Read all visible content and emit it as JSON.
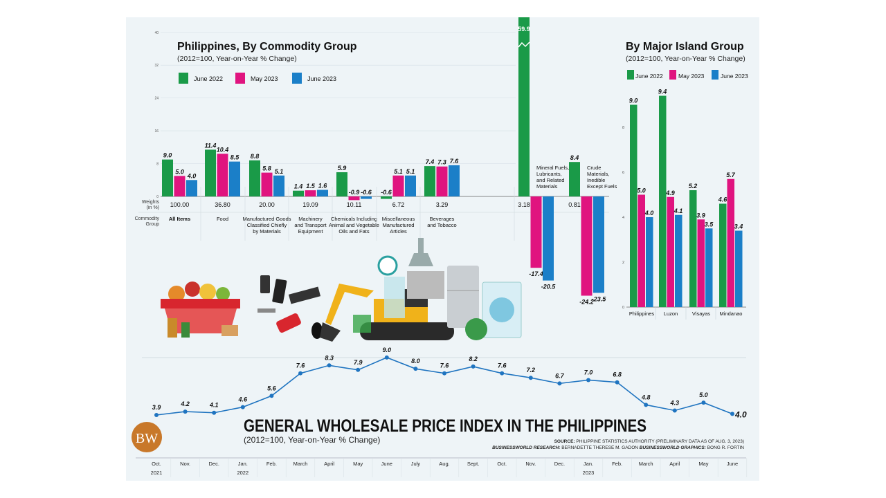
{
  "colors": {
    "june2022": "#1a9a48",
    "may2023": "#e0147f",
    "june2023": "#1b7fc8",
    "line": "#1f74c0",
    "panel": "#eef4f7",
    "logo": "#c8782a"
  },
  "infographic": {
    "title": "GENERAL WHOLESALE PRICE INDEX IN THE PHILIPPINES",
    "subtitle": "(2012=100, Year-on-Year % Change)",
    "logo_text": "BW",
    "source_label": "SOURCE:",
    "source_text": "PHILIPPINE STATISTICS AUTHORITY (PRELIMINARY DATA AS OF AUG. 3, 2023)",
    "research_label": "BUSINESSWORLD RESEARCH:",
    "research_text": "BERNADETTE THERESE M. GADON",
    "graphics_label": "BUSINESSWORLD GRAPHICS:",
    "graphics_text": "BONG R. FORTIN"
  },
  "chart_data": [
    {
      "type": "bar",
      "title": "Philippines, By Commodity Group",
      "subtitle": "(2012=100, Year-on-Year % Change)",
      "row_labels": {
        "weights": "Weights (in %)",
        "group": "Commodity Group"
      },
      "yticks": [
        0,
        8,
        16,
        24,
        32,
        40
      ],
      "ylim": [
        -24.2,
        40
      ],
      "axis_break": true,
      "grid": true,
      "legend": "top-left",
      "categories": [
        "All Items",
        "Food",
        "Manufactured Goods Classified Chiefly by Materials",
        "Machinery and Transport Equipment",
        "Chemicals Including Animal and Vegetable Oils and Fats",
        "Miscellaneous Manufactured Articles",
        "Beverages and Tobacco",
        "Mineral Fuels, Lubricants, and Related Materials",
        "Crude Materials, Inedible Except Fuels"
      ],
      "weights": [
        "100.00",
        "36.80",
        "20.00",
        "19.09",
        "10.11",
        "6.72",
        "3.29",
        "3.18",
        "0.81"
      ],
      "series": [
        {
          "name": "June 2022",
          "values": [
            9.0,
            11.4,
            8.8,
            1.4,
            5.9,
            -0.6,
            7.4,
            59.9,
            8.4
          ]
        },
        {
          "name": "May 2023",
          "values": [
            5.0,
            10.4,
            5.8,
            1.5,
            -0.9,
            5.1,
            7.3,
            -17.4,
            -24.2
          ]
        },
        {
          "name": "June 2023",
          "values": [
            4.0,
            8.5,
            5.1,
            1.6,
            -0.6,
            5.1,
            7.6,
            -20.5,
            -23.5
          ]
        }
      ]
    },
    {
      "type": "bar",
      "title": "By Major Island Group",
      "subtitle": "(2012=100, Year-on-Year % Change)",
      "yticks": [
        0,
        2,
        4,
        6,
        8
      ],
      "ylim": [
        0,
        9.4
      ],
      "legend": "top",
      "categories": [
        "Philippines",
        "Luzon",
        "Visayas",
        "Mindanao"
      ],
      "series": [
        {
          "name": "June 2022",
          "values": [
            9.0,
            9.4,
            5.2,
            4.6
          ]
        },
        {
          "name": "May 2023",
          "values": [
            5.0,
            4.9,
            3.9,
            5.7
          ]
        },
        {
          "name": "June 2023",
          "values": [
            4.0,
            4.1,
            3.5,
            3.4
          ]
        }
      ]
    },
    {
      "type": "line",
      "categories": [
        "Oct.",
        "Nov.",
        "Dec.",
        "Jan.",
        "Feb.",
        "March",
        "April",
        "May",
        "June",
        "July",
        "Aug.",
        "Sept.",
        "Oct.",
        "Nov.",
        "Dec.",
        "Jan.",
        "Feb.",
        "March",
        "April",
        "May",
        "June"
      ],
      "year_labels": {
        "0": "2021",
        "3": "2022",
        "15": "2023"
      },
      "values": [
        3.9,
        4.2,
        4.1,
        4.6,
        5.6,
        7.6,
        8.3,
        7.9,
        9.0,
        8.0,
        7.6,
        8.2,
        7.6,
        7.2,
        6.7,
        7.0,
        6.8,
        4.8,
        4.3,
        5.0,
        4.0
      ]
    }
  ]
}
